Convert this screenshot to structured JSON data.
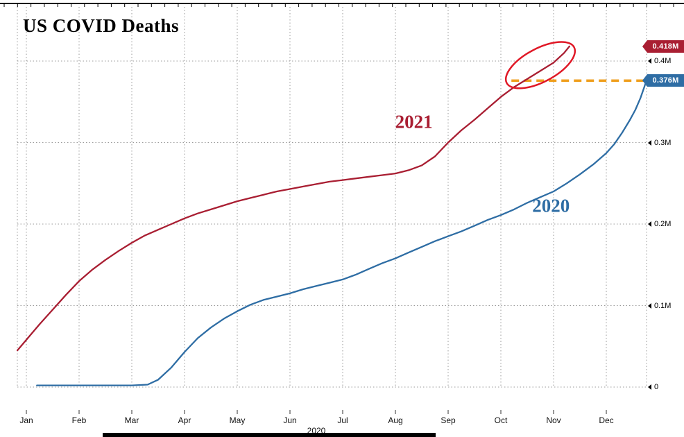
{
  "title": "US COVID Deaths",
  "chart_data": {
    "type": "line",
    "title": "US COVID Deaths",
    "x_axis": {
      "label": "2020",
      "tick_labels": [
        "Jan",
        "Feb",
        "Mar",
        "Apr",
        "May",
        "Jun",
        "Jul",
        "Aug",
        "Sep",
        "Oct",
        "Nov",
        "Dec"
      ],
      "unit": "month of year (Jan = 0)"
    },
    "y_axis": {
      "tick_values": [
        0,
        0.1,
        0.2,
        0.3,
        0.4
      ],
      "tick_labels": [
        "0",
        "0.1M",
        "0.2M",
        "0.3M",
        "0.4M"
      ],
      "range": [
        0,
        0.466
      ],
      "unit": "cumulative deaths (millions)"
    },
    "grid": true,
    "series": [
      {
        "name": "2021",
        "color": "#a91e32",
        "end_label": "0.418M",
        "end_value": 0.418,
        "points": [
          [
            -0.17,
            0.045
          ],
          [
            0,
            0.058
          ],
          [
            0.25,
            0.077
          ],
          [
            0.5,
            0.095
          ],
          [
            0.75,
            0.113
          ],
          [
            1,
            0.13
          ],
          [
            1.25,
            0.144
          ],
          [
            1.5,
            0.156
          ],
          [
            1.75,
            0.167
          ],
          [
            2,
            0.177
          ],
          [
            2.25,
            0.186
          ],
          [
            2.5,
            0.193
          ],
          [
            2.75,
            0.2
          ],
          [
            3,
            0.207
          ],
          [
            3.25,
            0.213
          ],
          [
            3.5,
            0.218
          ],
          [
            3.75,
            0.223
          ],
          [
            4,
            0.228
          ],
          [
            4.25,
            0.232
          ],
          [
            4.5,
            0.236
          ],
          [
            4.75,
            0.24
          ],
          [
            5,
            0.243
          ],
          [
            5.25,
            0.246
          ],
          [
            5.5,
            0.249
          ],
          [
            5.75,
            0.252
          ],
          [
            6,
            0.254
          ],
          [
            6.25,
            0.256
          ],
          [
            6.5,
            0.258
          ],
          [
            6.75,
            0.26
          ],
          [
            7,
            0.262
          ],
          [
            7.25,
            0.266
          ],
          [
            7.5,
            0.272
          ],
          [
            7.75,
            0.283
          ],
          [
            8,
            0.3
          ],
          [
            8.25,
            0.315
          ],
          [
            8.5,
            0.328
          ],
          [
            8.75,
            0.342
          ],
          [
            9,
            0.356
          ],
          [
            9.25,
            0.368
          ],
          [
            9.5,
            0.378
          ],
          [
            9.75,
            0.388
          ],
          [
            10,
            0.398
          ],
          [
            10.1,
            0.404
          ],
          [
            10.2,
            0.41
          ],
          [
            10.3,
            0.418
          ]
        ]
      },
      {
        "name": "2020",
        "color": "#2e6da4",
        "end_label": "0.376M",
        "end_value": 0.376,
        "points": [
          [
            0.2,
            0.002
          ],
          [
            0.5,
            0.002
          ],
          [
            1,
            0.002
          ],
          [
            1.5,
            0.002
          ],
          [
            2,
            0.002
          ],
          [
            2.3,
            0.003
          ],
          [
            2.5,
            0.009
          ],
          [
            2.75,
            0.024
          ],
          [
            3,
            0.043
          ],
          [
            3.25,
            0.06
          ],
          [
            3.5,
            0.073
          ],
          [
            3.75,
            0.084
          ],
          [
            4,
            0.093
          ],
          [
            4.25,
            0.101
          ],
          [
            4.5,
            0.107
          ],
          [
            4.75,
            0.111
          ],
          [
            5,
            0.115
          ],
          [
            5.25,
            0.12
          ],
          [
            5.5,
            0.124
          ],
          [
            5.75,
            0.128
          ],
          [
            6,
            0.132
          ],
          [
            6.25,
            0.138
          ],
          [
            6.5,
            0.145
          ],
          [
            6.75,
            0.152
          ],
          [
            7,
            0.158
          ],
          [
            7.25,
            0.165
          ],
          [
            7.5,
            0.172
          ],
          [
            7.75,
            0.179
          ],
          [
            8,
            0.185
          ],
          [
            8.25,
            0.191
          ],
          [
            8.5,
            0.198
          ],
          [
            8.75,
            0.205
          ],
          [
            9,
            0.211
          ],
          [
            9.25,
            0.218
          ],
          [
            9.5,
            0.226
          ],
          [
            9.75,
            0.233
          ],
          [
            10,
            0.24
          ],
          [
            10.25,
            0.25
          ],
          [
            10.5,
            0.261
          ],
          [
            10.75,
            0.273
          ],
          [
            11,
            0.287
          ],
          [
            11.15,
            0.298
          ],
          [
            11.3,
            0.312
          ],
          [
            11.45,
            0.328
          ],
          [
            11.55,
            0.34
          ],
          [
            11.65,
            0.355
          ],
          [
            11.72,
            0.368
          ],
          [
            11.76,
            0.376
          ]
        ]
      }
    ],
    "annotations": {
      "dashed_reference_line": {
        "value": 0.376,
        "from_month": 9.2,
        "color": "#ef9f1e",
        "style": "dashed",
        "meaning": "level of 2020 final cumulative deaths"
      },
      "highlight_ellipse": {
        "center_month": 9.75,
        "center_value": 0.395,
        "color": "#e01826"
      },
      "series_labels": [
        {
          "text": "2021",
          "month": 7.35,
          "value": 0.325,
          "color": "#a91e32"
        },
        {
          "text": "2020",
          "month": 9.95,
          "value": 0.222,
          "color": "#2e6da4"
        }
      ]
    }
  }
}
